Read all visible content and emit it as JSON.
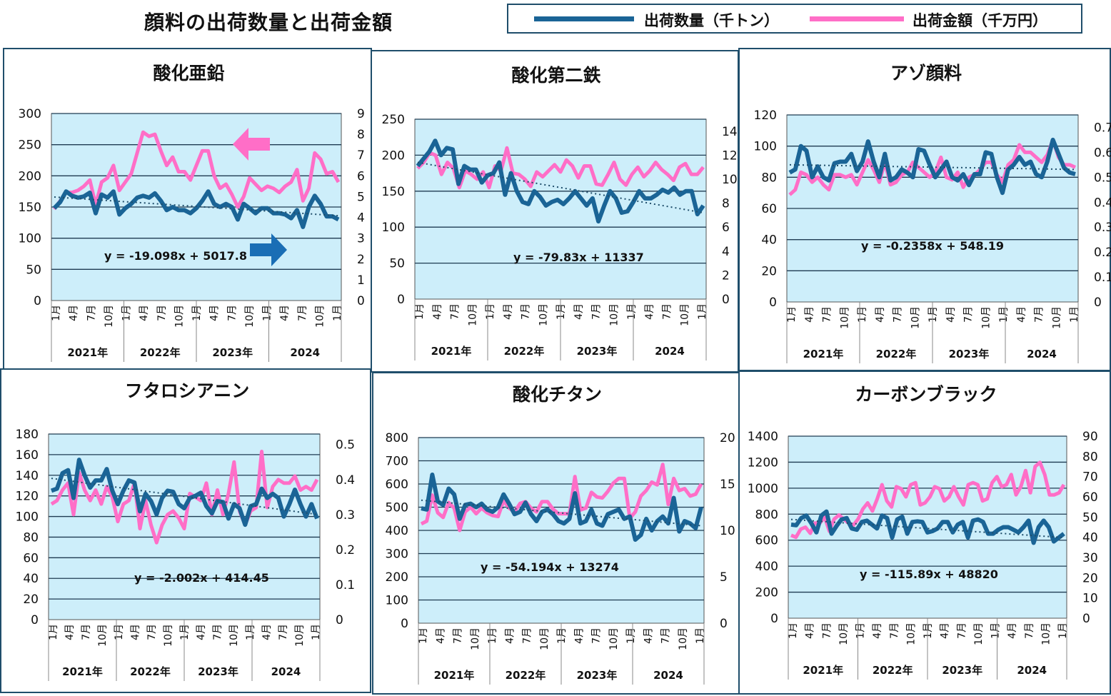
{
  "page_title": "顔料の出荷数量と出荷金額",
  "legend": {
    "items": [
      {
        "label": "出荷数量（千トン）",
        "color": "#1a6496"
      },
      {
        "label": "出荷金額（千万円）",
        "color": "#ff6ec7"
      }
    ]
  },
  "chart_data": [
    {
      "type": "line",
      "title": "酸化亜鉛",
      "y_left_ticks": [
        "0",
        "50",
        "100",
        "150",
        "200",
        "250",
        "300"
      ],
      "y_left_range": [
        0,
        300
      ],
      "y_right_ticks": [
        "0",
        "1",
        "2",
        "3",
        "4",
        "5",
        "6",
        "7",
        "8",
        "9"
      ],
      "y_right_range": [
        0,
        9
      ],
      "months": [
        "1月",
        "4月",
        "7月",
        "10月",
        "1月",
        "4月",
        "7月",
        "10月",
        "1月",
        "4月",
        "7月",
        "10月",
        "1月",
        "4月",
        "7月",
        "10月",
        "1月"
      ],
      "years": [
        "2021年",
        "2022年",
        "2023年",
        "2024"
      ],
      "grid": true,
      "annotations": [
        "y = -19.098x + 5017.8"
      ],
      "arrows": [
        "left (pink)",
        "right (blue)"
      ],
      "series": [
        {
          "name": "出荷数量（千トン）",
          "axis": "left",
          "trend_start": 166,
          "trend_end": 136,
          "values": [
            148,
            158,
            175,
            168,
            165,
            167,
            173,
            140,
            170,
            165,
            175,
            138,
            148,
            155,
            165,
            168,
            165,
            172,
            160,
            145,
            150,
            145,
            145,
            140,
            148,
            160,
            175,
            155,
            150,
            155,
            150,
            130,
            155,
            148,
            140,
            148,
            148,
            140,
            140,
            138,
            132,
            145,
            118,
            150,
            168,
            155,
            135,
            135,
            130
          ]
        },
        {
          "name": "出荷金額（千万円）",
          "axis": "right",
          "values": [
            4.4,
            4.8,
            5.2,
            5.2,
            5.3,
            5.5,
            5.8,
            4.6,
            5.7,
            5.9,
            6.5,
            5.3,
            5.7,
            6.1,
            7.1,
            8.1,
            7.9,
            8.0,
            7.2,
            6.5,
            6.9,
            6.2,
            6.2,
            5.8,
            6.5,
            7.2,
            7.2,
            6.0,
            5.4,
            5.6,
            5.1,
            4.5,
            5.0,
            5.9,
            5.6,
            5.3,
            5.5,
            5.4,
            5.2,
            5.5,
            5.7,
            6.3,
            4.8,
            5.4,
            7.1,
            6.8,
            6.1,
            6.2,
            5.7
          ]
        }
      ]
    },
    {
      "type": "line",
      "title": "酸化第二鉄",
      "y_left_ticks": [
        "0",
        "50",
        "100",
        "150",
        "200",
        "250"
      ],
      "y_left_range": [
        0,
        250
      ],
      "y_right_ticks": [
        "0",
        "2",
        "4",
        "6",
        "8",
        "10",
        "12",
        "14"
      ],
      "y_right_range": [
        0,
        15
      ],
      "months": [
        "1月",
        "4月",
        "7月",
        "10月",
        "1月",
        "4月",
        "7月",
        "10月",
        "1月",
        "4月",
        "7月",
        "10月",
        "1月",
        "4月",
        "7月",
        "10月",
        "1月"
      ],
      "years": [
        "2021年",
        "2022年",
        "2023年",
        "2024"
      ],
      "grid": true,
      "annotations": [
        "y = -79.83x + 11337"
      ],
      "series": [
        {
          "name": "出荷数量（千トン）",
          "axis": "left",
          "trend_start": 190,
          "trend_end": 120,
          "values": [
            185,
            195,
            205,
            220,
            200,
            210,
            208,
            160,
            185,
            180,
            180,
            162,
            172,
            175,
            190,
            145,
            175,
            150,
            135,
            132,
            150,
            142,
            130,
            135,
            138,
            132,
            140,
            150,
            140,
            130,
            140,
            108,
            130,
            150,
            140,
            120,
            122,
            135,
            150,
            140,
            140,
            145,
            152,
            148,
            155,
            145,
            150,
            150,
            118,
            130
          ]
        },
        {
          "name": "出荷金額（千万円）",
          "axis": "right",
          "values": [
            10.9,
            11.4,
            12.2,
            12.0,
            10.4,
            11.4,
            10.9,
            9.3,
            10.7,
            10.4,
            10.0,
            10.6,
            9.3,
            11.1,
            10.7,
            12.6,
            10.5,
            10.4,
            10.0,
            9.4,
            10.6,
            10.2,
            10.7,
            11.2,
            10.6,
            11.6,
            11.1,
            10.1,
            11.1,
            11.1,
            9.6,
            9.5,
            10.4,
            11.4,
            10.0,
            9.5,
            10.4,
            11.0,
            10.2,
            10.7,
            11.4,
            10.8,
            10.4,
            9.9,
            11.0,
            11.3,
            10.4,
            10.4,
            11.0
          ]
        }
      ]
    },
    {
      "type": "line",
      "title": "アゾ顔料",
      "y_left_ticks": [
        "0",
        "20",
        "40",
        "60",
        "80",
        "100",
        "120"
      ],
      "y_left_range": [
        0,
        120
      ],
      "y_right_ticks": [
        "0",
        "0.1",
        "0.2",
        "0.3",
        "0.4",
        "0.5",
        "0.6",
        "0.7"
      ],
      "y_right_range": [
        0,
        0.75
      ],
      "months": [
        "1月",
        "4月",
        "7月",
        "10月",
        "1月",
        "4月",
        "7月",
        "10月",
        "1月",
        "4月",
        "7月",
        "10月",
        "1月",
        "4月",
        "7月",
        "10月",
        "1月"
      ],
      "years": [
        "2021年",
        "2022年",
        "2023年",
        "2024"
      ],
      "grid": true,
      "annotations": [
        "y = -0.2358x + 548.19"
      ],
      "series": [
        {
          "name": "出荷数量（千トン）",
          "axis": "left",
          "trend_start": 88,
          "trend_end": 85,
          "values": [
            83,
            85,
            100,
            97,
            80,
            87,
            80,
            78,
            89,
            90,
            90,
            95,
            84,
            90,
            103,
            90,
            80,
            95,
            78,
            80,
            85,
            83,
            80,
            98,
            97,
            88,
            80,
            85,
            90,
            80,
            78,
            82,
            75,
            82,
            82,
            96,
            95,
            80,
            70,
            85,
            88,
            93,
            88,
            90,
            82,
            80,
            90,
            104,
            95,
            86,
            83,
            82
          ]
        },
        {
          "name": "出荷金額（千万円）",
          "axis": "right",
          "values": [
            0.43,
            0.45,
            0.52,
            0.51,
            0.48,
            0.5,
            0.47,
            0.45,
            0.51,
            0.51,
            0.5,
            0.51,
            0.47,
            0.52,
            0.57,
            0.53,
            0.48,
            0.56,
            0.47,
            0.48,
            0.51,
            0.52,
            0.56,
            0.54,
            0.52,
            0.5,
            0.52,
            0.58,
            0.5,
            0.49,
            0.52,
            0.46,
            0.5,
            0.51,
            0.53,
            0.56,
            0.56,
            0.51,
            0.48,
            0.55,
            0.57,
            0.63,
            0.6,
            0.6,
            0.58,
            0.56,
            0.59,
            0.65,
            0.58,
            0.55,
            0.55,
            0.54
          ]
        }
      ]
    },
    {
      "type": "line",
      "title": "フタロシアニン",
      "y_left_ticks": [
        "0",
        "20",
        "40",
        "60",
        "80",
        "100",
        "120",
        "140",
        "160",
        "180"
      ],
      "y_left_range": [
        0,
        180
      ],
      "y_right_ticks": [
        "0",
        "0.1",
        "0.2",
        "0.3",
        "0.4",
        "0.5"
      ],
      "y_right_range": [
        0,
        0.53
      ],
      "months": [
        "1月",
        "4月",
        "7月",
        "10月",
        "1月",
        "4月",
        "7月",
        "10月",
        "1月",
        "4月",
        "7月",
        "10月",
        "1月",
        "4月",
        "7月",
        "10月",
        "1月"
      ],
      "years": [
        "2021年",
        "2022年",
        "2023年",
        "2024"
      ],
      "grid": true,
      "annotations": [
        "y = -2.002x + 414.45"
      ],
      "series": [
        {
          "name": "出荷数量（千トン）",
          "axis": "left",
          "trend_start": 137,
          "trend_end": 102,
          "values": [
            125,
            127,
            142,
            145,
            118,
            155,
            140,
            128,
            135,
            135,
            146,
            125,
            112,
            125,
            135,
            133,
            105,
            122,
            115,
            102,
            118,
            125,
            124,
            112,
            108,
            118,
            120,
            123,
            110,
            103,
            115,
            114,
            98,
            112,
            108,
            92,
            110,
            112,
            127,
            118,
            122,
            118,
            100,
            112,
            126,
            112,
            100,
            112,
            98
          ]
        },
        {
          "name": "出荷金額（千万円）",
          "axis": "right",
          "values": [
            0.33,
            0.34,
            0.37,
            0.39,
            0.3,
            0.42,
            0.37,
            0.34,
            0.37,
            0.33,
            0.38,
            0.35,
            0.28,
            0.33,
            0.34,
            0.39,
            0.26,
            0.34,
            0.27,
            0.22,
            0.27,
            0.3,
            0.31,
            0.29,
            0.26,
            0.36,
            0.35,
            0.34,
            0.39,
            0.3,
            0.37,
            0.3,
            0.36,
            0.45,
            0.31,
            0.27,
            0.31,
            0.32,
            0.48,
            0.32,
            0.38,
            0.4,
            0.39,
            0.39,
            0.41,
            0.37,
            0.38,
            0.37,
            0.4
          ]
        }
      ]
    },
    {
      "type": "line",
      "title": "酸化チタン",
      "y_left_ticks": [
        "0",
        "100",
        "200",
        "300",
        "400",
        "500",
        "600",
        "700",
        "800"
      ],
      "y_left_range": [
        0,
        800
      ],
      "y_right_ticks": [
        "0",
        "5",
        "10",
        "15",
        "20"
      ],
      "y_right_range": [
        0,
        20
      ],
      "months": [
        "1月",
        "4月",
        "7月",
        "10月",
        "1月",
        "4月",
        "7月",
        "10月",
        "1月",
        "4月",
        "7月",
        "10月",
        "1月",
        "4月",
        "7月",
        "10月",
        "1月"
      ],
      "years": [
        "2021年",
        "2022年",
        "2023年",
        "2024"
      ],
      "grid": true,
      "annotations": [
        "y = -54.194x + 13274"
      ],
      "series": [
        {
          "name": "出荷数量（千トン）",
          "axis": "left",
          "trend_start": 530,
          "trend_end": 420,
          "values": [
            495,
            490,
            640,
            525,
            510,
            580,
            555,
            450,
            510,
            515,
            500,
            515,
            490,
            480,
            500,
            555,
            515,
            470,
            480,
            520,
            470,
            440,
            480,
            490,
            470,
            440,
            430,
            450,
            560,
            430,
            440,
            490,
            430,
            420,
            470,
            480,
            490,
            450,
            460,
            360,
            380,
            450,
            400,
            440,
            460,
            430,
            540,
            395,
            440,
            430,
            410,
            500
          ]
        },
        {
          "name": "出荷金額（千万円）",
          "axis": "right",
          "values": [
            10.7,
            11.0,
            13.8,
            11.9,
            11.4,
            13.0,
            12.4,
            10.0,
            12.0,
            12.5,
            11.8,
            12.4,
            11.9,
            11.6,
            11.5,
            13.2,
            12.4,
            12.0,
            12.9,
            13.1,
            12.4,
            12.0,
            13.1,
            13.1,
            12.3,
            11.8,
            11.8,
            11.8,
            15.8,
            12.2,
            12.4,
            14.1,
            13.6,
            13.5,
            14.2,
            15.1,
            15.6,
            15.6,
            11.3,
            12.0,
            13.7,
            14.3,
            15.2,
            14.9,
            17.1,
            12.8,
            15.6,
            14.3,
            14.5,
            13.7,
            13.9,
            15.0
          ]
        }
      ]
    },
    {
      "type": "line",
      "title": "カーボンブラック",
      "y_left_ticks": [
        "0",
        "200",
        "400",
        "600",
        "800",
        "1000",
        "1200",
        "1400"
      ],
      "y_left_range": [
        0,
        1400
      ],
      "y_right_ticks": [
        "0",
        "10",
        "20",
        "30",
        "40",
        "50",
        "60",
        "70",
        "80",
        "90"
      ],
      "y_right_range": [
        0,
        90
      ],
      "months": [
        "1月",
        "4月",
        "7月",
        "10月",
        "1月",
        "4月",
        "7月",
        "10月",
        "1月",
        "4月",
        "7月",
        "10月",
        "1月",
        "4月",
        "7月",
        "10月",
        "1月"
      ],
      "years": [
        "2021年",
        "2022年",
        "2023年",
        "2024"
      ],
      "grid": true,
      "annotations": [
        "y = -115.89x + 48820"
      ],
      "series": [
        {
          "name": "出荷数量（千トン）",
          "axis": "left",
          "trend_start": 760,
          "trend_end": 620,
          "values": [
            720,
            715,
            770,
            790,
            730,
            660,
            790,
            820,
            650,
            710,
            760,
            770,
            690,
            680,
            740,
            750,
            720,
            690,
            790,
            770,
            620,
            760,
            780,
            650,
            740,
            745,
            740,
            660,
            670,
            690,
            740,
            740,
            660,
            720,
            740,
            620,
            750,
            760,
            740,
            650,
            650,
            680,
            700,
            700,
            680,
            660,
            700,
            750,
            580,
            700,
            750,
            700,
            590,
            620,
            650
          ]
        },
        {
          "name": "出荷金額（千万円）",
          "axis": "right",
          "values": [
            41,
            40,
            44,
            45,
            42,
            47,
            47,
            50,
            43,
            49,
            51,
            49,
            47,
            46,
            49,
            54,
            57,
            53,
            59,
            66,
            58,
            55,
            65,
            64,
            60,
            66,
            67,
            56,
            57,
            60,
            65,
            64,
            58,
            60,
            65,
            60,
            56,
            66,
            67,
            66,
            58,
            59,
            67,
            70,
            65,
            66,
            71,
            61,
            65,
            73,
            62,
            75,
            77,
            71,
            61,
            61,
            62,
            66
          ]
        }
      ]
    }
  ]
}
